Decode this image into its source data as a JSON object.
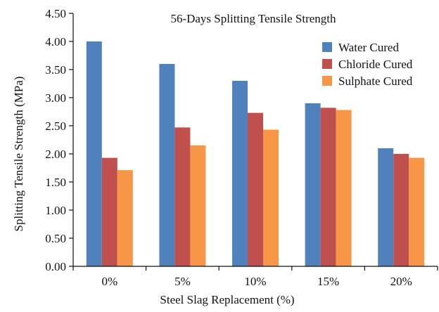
{
  "chart_data": {
    "type": "bar",
    "title": "56-Days Splitting Tensile Strength",
    "xlabel": "Steel Slag Replacement (%)",
    "ylabel": "Splitting Tensile Strength (MPa)",
    "categories": [
      "0%",
      "5%",
      "10%",
      "15%",
      "20%"
    ],
    "ylim": [
      0,
      4.5
    ],
    "yticks": [
      "0.00",
      "0.50",
      "1.00",
      "1.50",
      "2.00",
      "2.50",
      "3.00",
      "3.50",
      "4.00",
      "4.50"
    ],
    "grid": false,
    "legend_position": "top-right",
    "series": [
      {
        "name": "Water Cured",
        "color": "#4F81BD",
        "values": [
          4.0,
          3.6,
          3.3,
          2.9,
          2.1
        ]
      },
      {
        "name": "Chloride Cured",
        "color": "#C0504D",
        "values": [
          1.93,
          2.47,
          2.73,
          2.82,
          2.0
        ]
      },
      {
        "name": "Sulphate Cured",
        "color": "#F79646",
        "values": [
          1.71,
          2.15,
          2.43,
          2.78,
          1.93
        ]
      }
    ]
  }
}
